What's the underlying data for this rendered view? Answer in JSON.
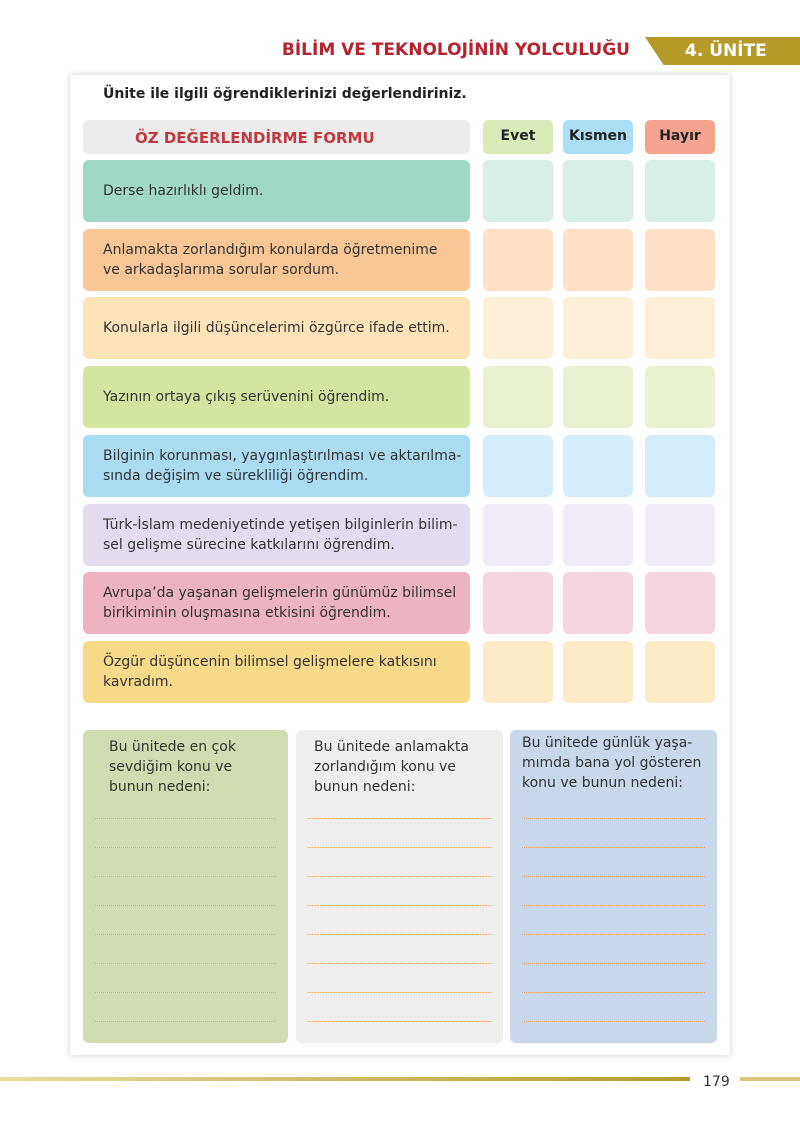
{
  "header": {
    "title": "BİLİM VE TEKNOLOJİNİN YOLCULUĞU",
    "unit": "4. ÜNİTE"
  },
  "instruction": "Ünite ile ilgili öğrendiklerinizi değerlendiriniz.",
  "form": {
    "title": "ÖZ DEĞERLENDİRME FORMU",
    "columns": [
      "Evet",
      "Kısmen",
      "Hayır"
    ],
    "rows": [
      {
        "lines": [
          "Derse hazırlıklı geldim."
        ]
      },
      {
        "lines": [
          "Anlamakta zorlandığım konularda öğretmenime",
          "ve arkadaşlarıma sorular sordum."
        ]
      },
      {
        "lines": [
          "Konularla ilgili düşüncelerimi özgürce ifade ettim."
        ]
      },
      {
        "lines": [
          "Yazının ortaya çıkış serüvenini öğrendim."
        ]
      },
      {
        "lines": [
          "Bilginin korunması, yaygınlaştırılması ve aktarılma-",
          "sında değişim ve sürekliliği öğrendim."
        ]
      },
      {
        "lines": [
          "Türk-İslam medeniyetinde yetişen bilginlerin bilim-",
          "sel gelişme sürecine katkılarını öğrendim."
        ]
      },
      {
        "lines": [
          "Avrupa’da yaşanan gelişmelerin günümüz bilimsel",
          "birikiminin oluşmasına etkisini öğrendim."
        ]
      },
      {
        "lines": [
          "Özgür düşüncenin bilimsel gelişmelere katkısını",
          "kavradım."
        ]
      }
    ]
  },
  "boxes": [
    {
      "lines": [
        "Bu ünitede en çok",
        "sevdiğim konu ve",
        "bunun nedeni:"
      ]
    },
    {
      "lines": [
        "Bu ünitede anlamakta",
        "zorlandığım konu ve",
        "bunun nedeni:"
      ]
    },
    {
      "lines": [
        "Bu ünitede günlük yaşa-",
        "mımda bana yol gösteren",
        "konu ve bunun nedeni:"
      ]
    }
  ],
  "page_number": "179"
}
